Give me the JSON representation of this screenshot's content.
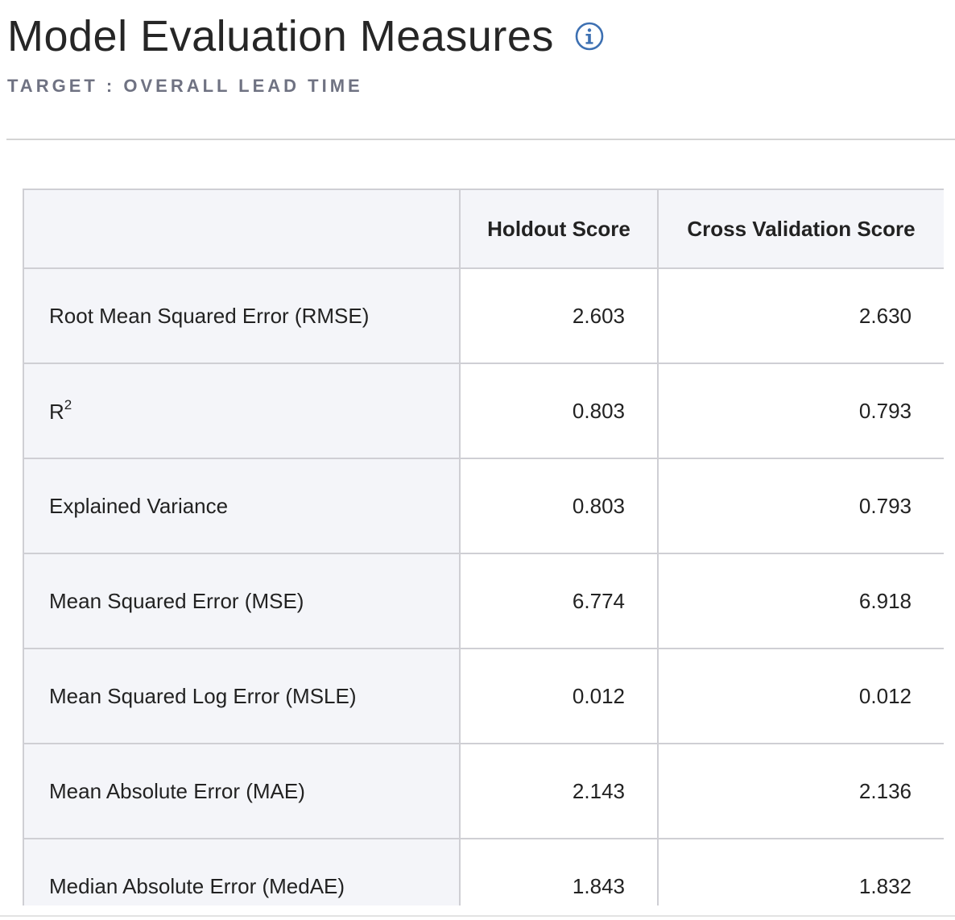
{
  "header": {
    "title": "Model Evaluation Measures",
    "subtitle": "TARGET : OVERALL LEAD TIME",
    "info_icon": "info-circle-icon"
  },
  "table": {
    "columns": [
      "",
      "Holdout Score",
      "Cross Validation Score"
    ],
    "rows": [
      {
        "metric": "Root Mean Squared Error (RMSE)",
        "holdout": "2.603",
        "cv": "2.630"
      },
      {
        "metric": "R",
        "metric_sup": "2",
        "holdout": "0.803",
        "cv": "0.793"
      },
      {
        "metric": "Explained Variance",
        "holdout": "0.803",
        "cv": "0.793"
      },
      {
        "metric": "Mean Squared Error (MSE)",
        "holdout": "6.774",
        "cv": "6.918"
      },
      {
        "metric": "Mean Squared Log Error (MSLE)",
        "holdout": "0.012",
        "cv": "0.012"
      },
      {
        "metric": "Mean Absolute Error (MAE)",
        "holdout": "2.143",
        "cv": "2.136"
      },
      {
        "metric": "Median Absolute Error (MedAE)",
        "holdout": "1.843",
        "cv": "1.832"
      }
    ]
  },
  "colors": {
    "accent_icon": "#3d70b2",
    "subtitle": "#6f7282",
    "label_cell_bg": "#f4f5f9",
    "border": "#cfcfd4"
  }
}
